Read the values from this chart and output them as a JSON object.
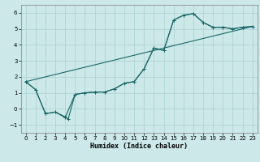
{
  "xlabel": "Humidex (Indice chaleur)",
  "bg_color": "#cce8e8",
  "line_color": "#1a6868",
  "grid_color": "#aad0d0",
  "xlim": [
    -0.5,
    23.5
  ],
  "ylim": [
    -1.5,
    6.5
  ],
  "xticks": [
    0,
    1,
    2,
    3,
    4,
    5,
    6,
    7,
    8,
    9,
    10,
    11,
    12,
    13,
    14,
    15,
    16,
    17,
    18,
    19,
    20,
    21,
    22,
    23
  ],
  "yticks": [
    -1,
    0,
    1,
    2,
    3,
    4,
    5,
    6
  ],
  "line1_x": [
    0,
    1,
    2,
    3,
    4,
    4.3,
    5,
    6,
    7,
    8,
    9,
    10,
    11,
    12,
    13,
    14,
    15,
    16,
    17,
    18,
    19,
    20,
    21,
    22,
    23
  ],
  "line1_y": [
    1.7,
    1.2,
    -0.3,
    -0.2,
    -0.5,
    -0.65,
    0.9,
    1.0,
    1.05,
    1.05,
    1.25,
    1.6,
    1.7,
    2.5,
    3.8,
    3.65,
    5.55,
    5.85,
    5.95,
    5.4,
    5.1,
    5.1,
    5.0,
    5.1,
    5.15
  ],
  "line2_x": [
    0,
    23
  ],
  "line2_y": [
    1.7,
    5.15
  ],
  "line3_x": [
    0,
    1,
    2,
    3,
    4,
    5,
    6,
    7,
    8,
    9,
    10,
    11,
    12,
    13,
    14,
    15,
    16,
    17,
    18,
    19,
    20,
    21,
    22,
    23
  ],
  "line3_y": [
    1.7,
    1.2,
    -0.3,
    -0.2,
    -0.55,
    0.9,
    1.0,
    1.05,
    1.05,
    1.25,
    1.6,
    1.7,
    2.5,
    3.8,
    3.65,
    5.55,
    5.85,
    5.95,
    5.4,
    5.1,
    5.1,
    5.0,
    5.1,
    5.15
  ]
}
